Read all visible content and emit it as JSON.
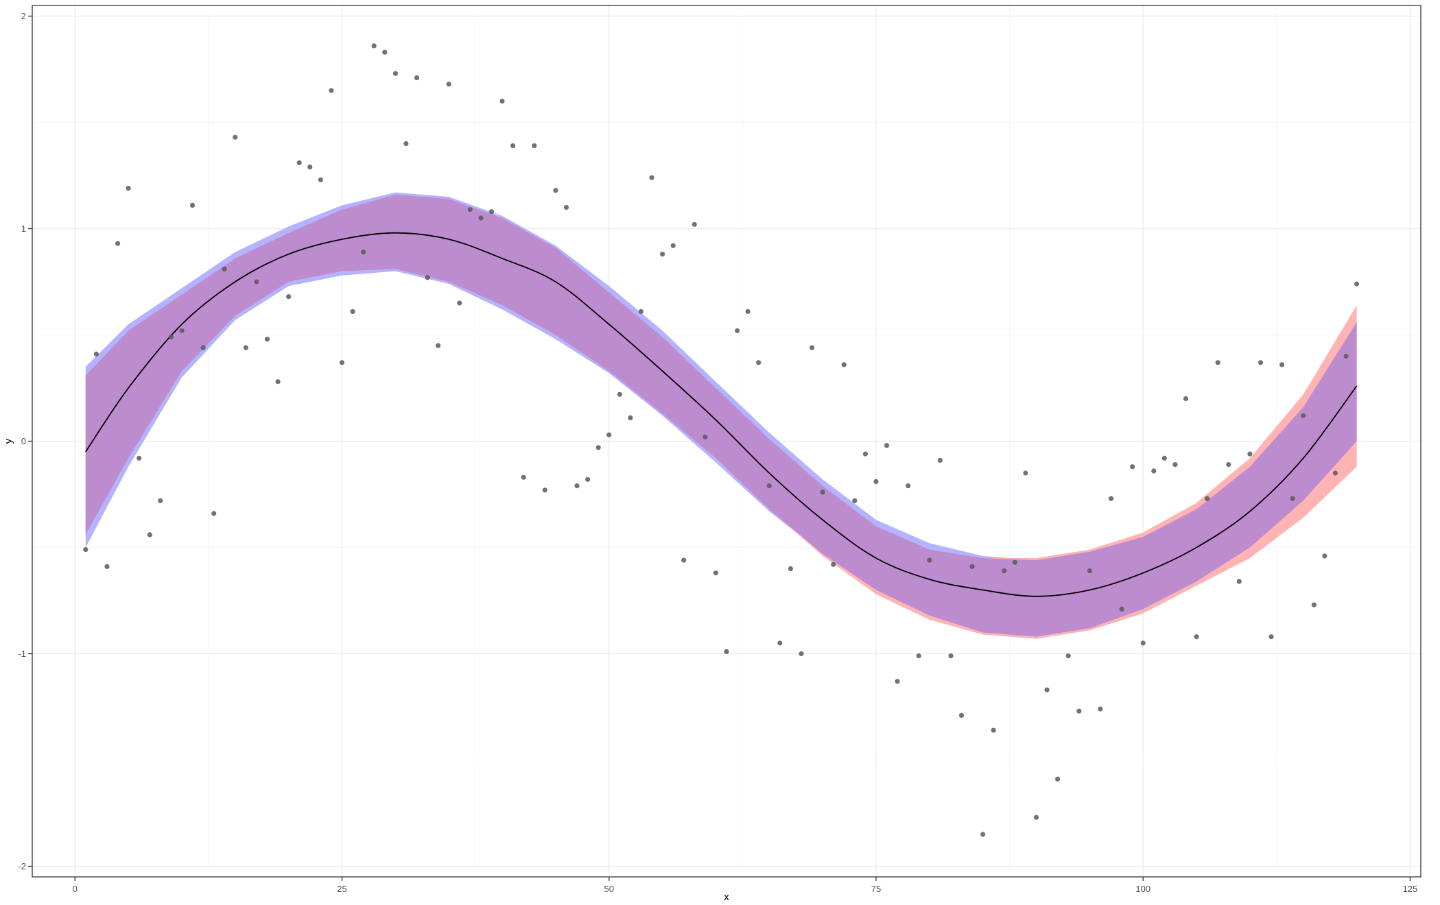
{
  "chart_data": {
    "type": "scatter",
    "xlabel": "x",
    "ylabel": "y",
    "xlim": [
      -4,
      126
    ],
    "ylim": [
      -2.05,
      2.05
    ],
    "x_ticks": [
      0,
      25,
      50,
      75,
      100,
      125
    ],
    "x_tick_labels": [
      "0",
      "25",
      "50",
      "75",
      "100",
      "125"
    ],
    "y_ticks": [
      -2,
      -1,
      0,
      1,
      2
    ],
    "y_tick_labels": [
      "-2",
      "-1",
      "0",
      "1",
      "2"
    ],
    "grid": true,
    "theme": "bw",
    "colors": {
      "points": "#595959",
      "band_blue": "#b3b3ff",
      "band_red": "#ffb3b3",
      "band_overlap": "#bd8ccf",
      "fit_line": "#000000",
      "grid_major": "#ebebeb",
      "grid_minor": "#f5f5f5",
      "border": "#333333"
    },
    "points": [
      [
        1,
        -0.51
      ],
      [
        2,
        0.41
      ],
      [
        3,
        -0.59
      ],
      [
        4,
        0.93
      ],
      [
        5,
        1.19
      ],
      [
        6,
        -0.08
      ],
      [
        7,
        -0.44
      ],
      [
        8,
        -0.28
      ],
      [
        9,
        0.49
      ],
      [
        10,
        0.52
      ],
      [
        11,
        1.11
      ],
      [
        12,
        0.44
      ],
      [
        13,
        -0.34
      ],
      [
        14,
        0.81
      ],
      [
        15,
        1.43
      ],
      [
        16,
        0.44
      ],
      [
        17,
        0.75
      ],
      [
        18,
        0.48
      ],
      [
        19,
        0.28
      ],
      [
        20,
        0.68
      ],
      [
        21,
        1.31
      ],
      [
        22,
        1.29
      ],
      [
        23,
        1.23
      ],
      [
        24,
        1.65
      ],
      [
        25,
        0.37
      ],
      [
        26,
        0.61
      ],
      [
        27,
        0.89
      ],
      [
        28,
        1.86
      ],
      [
        29,
        1.83
      ],
      [
        30,
        1.73
      ],
      [
        31,
        1.4
      ],
      [
        32,
        1.71
      ],
      [
        33,
        0.77
      ],
      [
        34,
        0.45
      ],
      [
        35,
        1.68
      ],
      [
        36,
        0.65
      ],
      [
        37,
        1.09
      ],
      [
        38,
        1.05
      ],
      [
        39,
        1.08
      ],
      [
        40,
        1.6
      ],
      [
        41,
        1.39
      ],
      [
        42,
        -0.17
      ],
      [
        43,
        1.39
      ],
      [
        44,
        -0.23
      ],
      [
        45,
        1.18
      ],
      [
        46,
        1.1
      ],
      [
        47,
        -0.21
      ],
      [
        48,
        -0.18
      ],
      [
        49,
        -0.03
      ],
      [
        50,
        0.03
      ],
      [
        51,
        0.22
      ],
      [
        52,
        0.11
      ],
      [
        53,
        0.61
      ],
      [
        54,
        1.24
      ],
      [
        55,
        0.88
      ],
      [
        56,
        0.92
      ],
      [
        57,
        -0.56
      ],
      [
        58,
        1.02
      ],
      [
        59,
        0.02
      ],
      [
        60,
        -0.62
      ],
      [
        61,
        -0.99
      ],
      [
        62,
        0.52
      ],
      [
        63,
        0.61
      ],
      [
        64,
        0.37
      ],
      [
        65,
        -0.21
      ],
      [
        66,
        -0.95
      ],
      [
        67,
        -0.6
      ],
      [
        68,
        -1.0
      ],
      [
        69,
        0.44
      ],
      [
        70,
        -0.24
      ],
      [
        71,
        -0.58
      ],
      [
        72,
        0.36
      ],
      [
        73,
        -0.28
      ],
      [
        74,
        -0.06
      ],
      [
        75,
        -0.19
      ],
      [
        76,
        -0.02
      ],
      [
        77,
        -1.13
      ],
      [
        78,
        -0.21
      ],
      [
        79,
        -1.01
      ],
      [
        80,
        -0.56
      ],
      [
        81,
        -0.09
      ],
      [
        82,
        -1.01
      ],
      [
        83,
        -1.29
      ],
      [
        84,
        -0.59
      ],
      [
        85,
        -1.85
      ],
      [
        86,
        -1.36
      ],
      [
        87,
        -0.61
      ],
      [
        88,
        -0.57
      ],
      [
        89,
        -0.15
      ],
      [
        90,
        -1.77
      ],
      [
        91,
        -1.17
      ],
      [
        92,
        -1.59
      ],
      [
        93,
        -1.01
      ],
      [
        94,
        -1.27
      ],
      [
        95,
        -0.61
      ],
      [
        96,
        -1.26
      ],
      [
        97,
        -0.27
      ],
      [
        98,
        -0.79
      ],
      [
        99,
        -0.12
      ],
      [
        100,
        -0.95
      ],
      [
        101,
        -0.14
      ],
      [
        102,
        -0.08
      ],
      [
        103,
        -0.11
      ],
      [
        104,
        0.2
      ],
      [
        105,
        -0.92
      ],
      [
        106,
        -0.27
      ],
      [
        107,
        0.37
      ],
      [
        108,
        -0.11
      ],
      [
        109,
        -0.66
      ],
      [
        110,
        -0.06
      ],
      [
        111,
        0.37
      ],
      [
        112,
        -0.92
      ],
      [
        113,
        0.36
      ],
      [
        114,
        -0.27
      ],
      [
        115,
        0.12
      ],
      [
        116,
        -0.77
      ],
      [
        117,
        -0.54
      ],
      [
        118,
        -0.15
      ],
      [
        119,
        0.4
      ],
      [
        120,
        0.74
      ]
    ],
    "fit_line": [
      [
        1,
        -0.05
      ],
      [
        5,
        0.25
      ],
      [
        10,
        0.55
      ],
      [
        15,
        0.75
      ],
      [
        20,
        0.88
      ],
      [
        25,
        0.95
      ],
      [
        30,
        0.98
      ],
      [
        35,
        0.95
      ],
      [
        40,
        0.86
      ],
      [
        45,
        0.75
      ],
      [
        50,
        0.55
      ],
      [
        55,
        0.33
      ],
      [
        60,
        0.1
      ],
      [
        65,
        -0.15
      ],
      [
        70,
        -0.37
      ],
      [
        75,
        -0.55
      ],
      [
        80,
        -0.65
      ],
      [
        85,
        -0.7
      ],
      [
        90,
        -0.73
      ],
      [
        95,
        -0.7
      ],
      [
        100,
        -0.62
      ],
      [
        105,
        -0.5
      ],
      [
        110,
        -0.33
      ],
      [
        115,
        -0.08
      ],
      [
        120,
        0.26
      ]
    ],
    "band_blue": {
      "x": [
        1,
        5,
        10,
        15,
        20,
        25,
        30,
        35,
        40,
        45,
        50,
        55,
        60,
        65,
        70,
        75,
        80,
        85,
        90,
        95,
        100,
        105,
        110,
        115,
        120
      ],
      "upper": [
        0.35,
        0.55,
        0.72,
        0.89,
        1.01,
        1.11,
        1.17,
        1.15,
        1.06,
        0.92,
        0.73,
        0.52,
        0.28,
        0.04,
        -0.18,
        -0.37,
        -0.48,
        -0.54,
        -0.56,
        -0.52,
        -0.45,
        -0.32,
        -0.12,
        0.16,
        0.56
      ],
      "lower": [
        -0.5,
        -0.12,
        0.3,
        0.57,
        0.73,
        0.78,
        0.8,
        0.74,
        0.62,
        0.48,
        0.32,
        0.12,
        -0.1,
        -0.33,
        -0.53,
        -0.7,
        -0.82,
        -0.9,
        -0.92,
        -0.88,
        -0.79,
        -0.66,
        -0.5,
        -0.28,
        0.0
      ]
    },
    "band_red": {
      "x": [
        1,
        5,
        10,
        15,
        20,
        25,
        30,
        35,
        40,
        45,
        50,
        55,
        60,
        65,
        70,
        75,
        80,
        85,
        90,
        95,
        100,
        105,
        110,
        115,
        120
      ],
      "upper": [
        0.31,
        0.52,
        0.69,
        0.86,
        0.98,
        1.09,
        1.16,
        1.14,
        1.05,
        0.91,
        0.7,
        0.49,
        0.25,
        0.01,
        -0.21,
        -0.4,
        -0.51,
        -0.55,
        -0.55,
        -0.51,
        -0.43,
        -0.29,
        -0.08,
        0.22,
        0.64
      ],
      "lower": [
        -0.44,
        -0.08,
        0.33,
        0.59,
        0.75,
        0.8,
        0.81,
        0.75,
        0.64,
        0.5,
        0.33,
        0.13,
        -0.08,
        -0.32,
        -0.54,
        -0.72,
        -0.84,
        -0.91,
        -0.93,
        -0.89,
        -0.81,
        -0.68,
        -0.55,
        -0.36,
        -0.12
      ]
    }
  }
}
